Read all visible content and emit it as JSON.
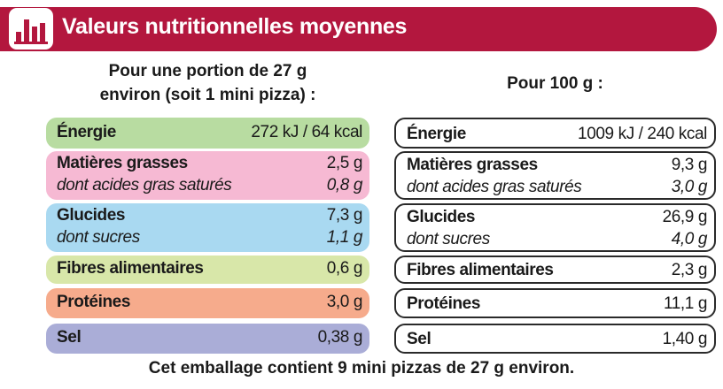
{
  "header": {
    "title": "Valeurs nutritionnelles moyennes"
  },
  "portion": {
    "heading": [
      "Pour une portion de 27 g",
      "environ (soit 1 mini pizza) :"
    ],
    "groups": [
      {
        "rows": [
          {
            "label": "Énergie",
            "value": "272 kJ / 64 kcal"
          }
        ]
      },
      {
        "rows": [
          {
            "label": "Matières grasses",
            "value": "2,5 g"
          },
          {
            "label": "dont acides gras saturés",
            "value": "0,8 g"
          }
        ]
      },
      {
        "rows": [
          {
            "label": "Glucides",
            "value": "7,3 g"
          },
          {
            "label": "dont sucres",
            "value": "1,1 g"
          }
        ]
      },
      {
        "rows": [
          {
            "label": "Fibres alimentaires",
            "value": "0,6 g"
          }
        ]
      },
      {
        "rows": [
          {
            "label": "Protéines",
            "value": "3,0 g"
          }
        ]
      },
      {
        "rows": [
          {
            "label": "Sel",
            "value": "0,38 g"
          }
        ]
      }
    ]
  },
  "per100": {
    "heading": [
      "Pour 100 g :"
    ],
    "groups": [
      {
        "rows": [
          {
            "label": "Énergie",
            "value": "1009 kJ / 240 kcal"
          }
        ]
      },
      {
        "rows": [
          {
            "label": "Matières grasses",
            "value": "9,3 g"
          },
          {
            "label": "dont acides gras saturés",
            "value": "3,0 g"
          }
        ]
      },
      {
        "rows": [
          {
            "label": "Glucides",
            "value": "26,9 g"
          },
          {
            "label": "dont sucres",
            "value": "4,0 g"
          }
        ]
      },
      {
        "rows": [
          {
            "label": "Fibres alimentaires",
            "value": "2,3 g"
          }
        ]
      },
      {
        "rows": [
          {
            "label": "Protéines",
            "value": "11,1 g"
          }
        ]
      },
      {
        "rows": [
          {
            "label": "Sel",
            "value": "1,40 g"
          }
        ]
      }
    ]
  },
  "footer": {
    "text": "Cet emballage contient 9 mini pizzas de 27 g environ."
  }
}
